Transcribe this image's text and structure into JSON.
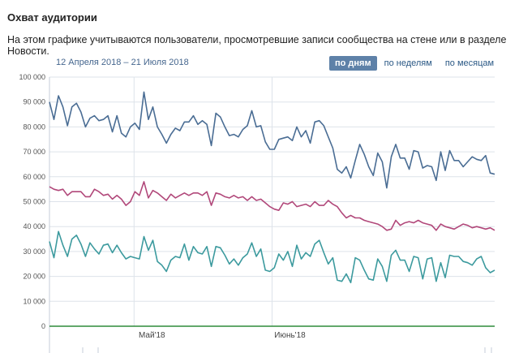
{
  "header": {
    "title": "Охват аудитории",
    "subtitle": "На этом графике учитываются пользователи, просмотревшие записи сообщества на стене или в разделе Новости."
  },
  "range_label": "12 Апреля 2018 – 21 Июля 2018",
  "period_tabs": [
    {
      "label": "по дням",
      "active": true
    },
    {
      "label": "по неделям",
      "active": false
    },
    {
      "label": "по месяцам",
      "active": false
    }
  ],
  "colors": {
    "series1": "#4a6d94",
    "series2": "#b1487a",
    "series3": "#3c9a9e",
    "zero_line": "#2e8b3a",
    "grid": "#dde3ea"
  },
  "chart_data": {
    "type": "line",
    "x_start": "2018-04-12",
    "x_end": "2018-07-21",
    "x_ticks": [
      {
        "label": "Май'18",
        "date": "2018-05-01"
      },
      {
        "label": "Июнь'18",
        "date": "2018-06-01"
      }
    ],
    "y_ticks": [
      "0",
      "10 000",
      "20 000",
      "30 000",
      "40 000",
      "50 000",
      "60 000",
      "70 000",
      "80 000",
      "90 000",
      "100 000"
    ],
    "ylim": [
      0,
      100000
    ],
    "grid": true,
    "series": [
      {
        "values": [
          90000,
          83000,
          92500,
          88000,
          80500,
          88000,
          89500,
          86000,
          80000,
          83500,
          84500,
          82500,
          83000,
          84500,
          78000,
          84500,
          77500,
          76000,
          80000,
          81500,
          79000,
          94000,
          83000,
          88000,
          80000,
          77000,
          73500,
          77000,
          79500,
          78500,
          82000,
          82000,
          84500,
          81000,
          82500,
          81000,
          72500,
          85500,
          84000,
          80000,
          76500,
          77000,
          76000,
          79000,
          80500,
          86500,
          80000,
          80500,
          74000,
          71000,
          71000,
          75000,
          75500,
          76000,
          74500,
          80000,
          76000,
          78500,
          73500,
          82000,
          82500,
          80500,
          76000,
          71500,
          63000,
          61500,
          64000,
          59500,
          66500,
          73000,
          69000,
          64000,
          60500,
          69500,
          66000,
          55500,
          68000,
          73000,
          67500,
          67500,
          63000,
          70500,
          70000,
          63500,
          64500,
          64000,
          58500,
          70000,
          62500,
          70500,
          66500,
          66500,
          64000,
          66000,
          68000,
          67000,
          66500,
          68500,
          61500,
          61000
        ]
      },
      {
        "values": [
          56000,
          55000,
          54500,
          55000,
          52500,
          54000,
          54000,
          54000,
          52000,
          52000,
          55000,
          54000,
          52500,
          53000,
          51000,
          52500,
          51000,
          48500,
          50000,
          54000,
          52500,
          58000,
          51500,
          54500,
          53500,
          52000,
          50500,
          53000,
          51500,
          52500,
          53500,
          52500,
          53500,
          53500,
          52500,
          54000,
          48500,
          53500,
          53000,
          52000,
          51500,
          52500,
          51500,
          52000,
          50500,
          52000,
          50500,
          51000,
          49500,
          48000,
          47000,
          46500,
          49500,
          49000,
          50000,
          48000,
          48500,
          49000,
          48000,
          50000,
          48500,
          48500,
          50500,
          49000,
          48000,
          45500,
          43500,
          44500,
          43500,
          43500,
          42500,
          42000,
          41500,
          41000,
          40000,
          38500,
          39000,
          42500,
          40500,
          41500,
          42000,
          41500,
          42500,
          41500,
          41000,
          40500,
          38500,
          41000,
          40000,
          39500,
          39000,
          40000,
          41000,
          40500,
          39500,
          40000,
          39500,
          39000,
          39500,
          38500
        ]
      },
      {
        "values": [
          34000,
          27500,
          38000,
          32500,
          28000,
          35000,
          36500,
          33000,
          28000,
          33500,
          31000,
          29000,
          32500,
          33000,
          29500,
          32500,
          29500,
          27000,
          28000,
          27500,
          27000,
          36000,
          30500,
          34500,
          26000,
          24500,
          22000,
          26500,
          28000,
          27500,
          33000,
          26500,
          32000,
          29500,
          29000,
          32000,
          24000,
          32000,
          31500,
          28500,
          25000,
          27000,
          24500,
          27500,
          29000,
          33500,
          28000,
          31000,
          22500,
          22000,
          23500,
          29000,
          26500,
          30000,
          24000,
          32500,
          27000,
          29500,
          28000,
          33000,
          34500,
          29500,
          25000,
          27500,
          18500,
          18000,
          21000,
          17500,
          27500,
          26500,
          22500,
          19000,
          18500,
          27000,
          24000,
          18000,
          28500,
          30500,
          26500,
          26500,
          22000,
          28000,
          27500,
          19000,
          27000,
          27500,
          18000,
          25500,
          19500,
          28500,
          28000,
          28000,
          26000,
          25500,
          24500,
          27000,
          28000,
          23500,
          21500,
          22500
        ]
      }
    ]
  }
}
